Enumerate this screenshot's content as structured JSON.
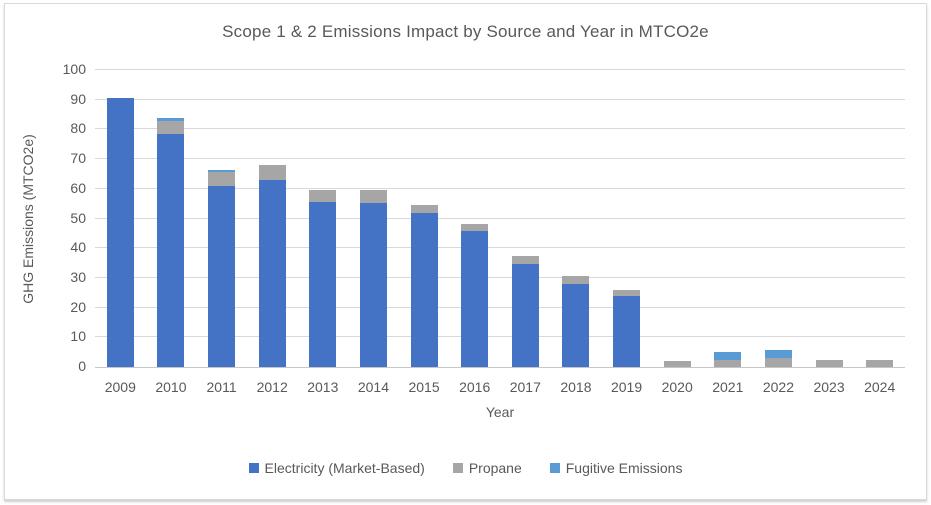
{
  "window": {
    "background": "#ffffff",
    "frame_border_color": "#d9d9d9"
  },
  "chart_data": {
    "type": "bar",
    "stacked": true,
    "title": "Scope 1 & 2 Emissions Impact by Source and Year in MTCO2e",
    "xlabel": "Year",
    "ylabel": "GHG Emissions (MTCO2e)",
    "categories": [
      "2009",
      "2010",
      "2011",
      "2012",
      "2013",
      "2014",
      "2015",
      "2016",
      "2017",
      "2018",
      "2019",
      "2020",
      "2021",
      "2022",
      "2023",
      "2024"
    ],
    "series": [
      {
        "name": "Electricity (Market-Based)",
        "color": "#4472c4",
        "values": [
          90.7,
          78.5,
          61.0,
          62.8,
          55.5,
          55.3,
          52.0,
          45.7,
          34.7,
          28.1,
          23.8,
          0,
          0,
          0,
          0,
          0
        ]
      },
      {
        "name": "Propane",
        "color": "#a6a6a6",
        "values": [
          0,
          4.5,
          4.5,
          5.2,
          4.0,
          4.2,
          2.7,
          2.6,
          2.7,
          2.6,
          2.0,
          2.0,
          2.5,
          3.0,
          2.5,
          2.5
        ]
      },
      {
        "name": "Fugitive Emissions",
        "color": "#5b9bd5",
        "values": [
          0,
          0.8,
          1.0,
          0,
          0,
          0,
          0,
          0,
          0,
          0,
          0,
          0,
          2.7,
          2.7,
          0,
          0
        ]
      }
    ],
    "ylim": [
      0,
      100
    ],
    "yticks": [
      0,
      10,
      20,
      30,
      40,
      50,
      60,
      70,
      80,
      90,
      100
    ],
    "grid": true,
    "legend_position": "bottom",
    "text_color": "#595959",
    "gridline_color": "#d9d9d9",
    "axis_line_color": "#c6c6c6"
  }
}
